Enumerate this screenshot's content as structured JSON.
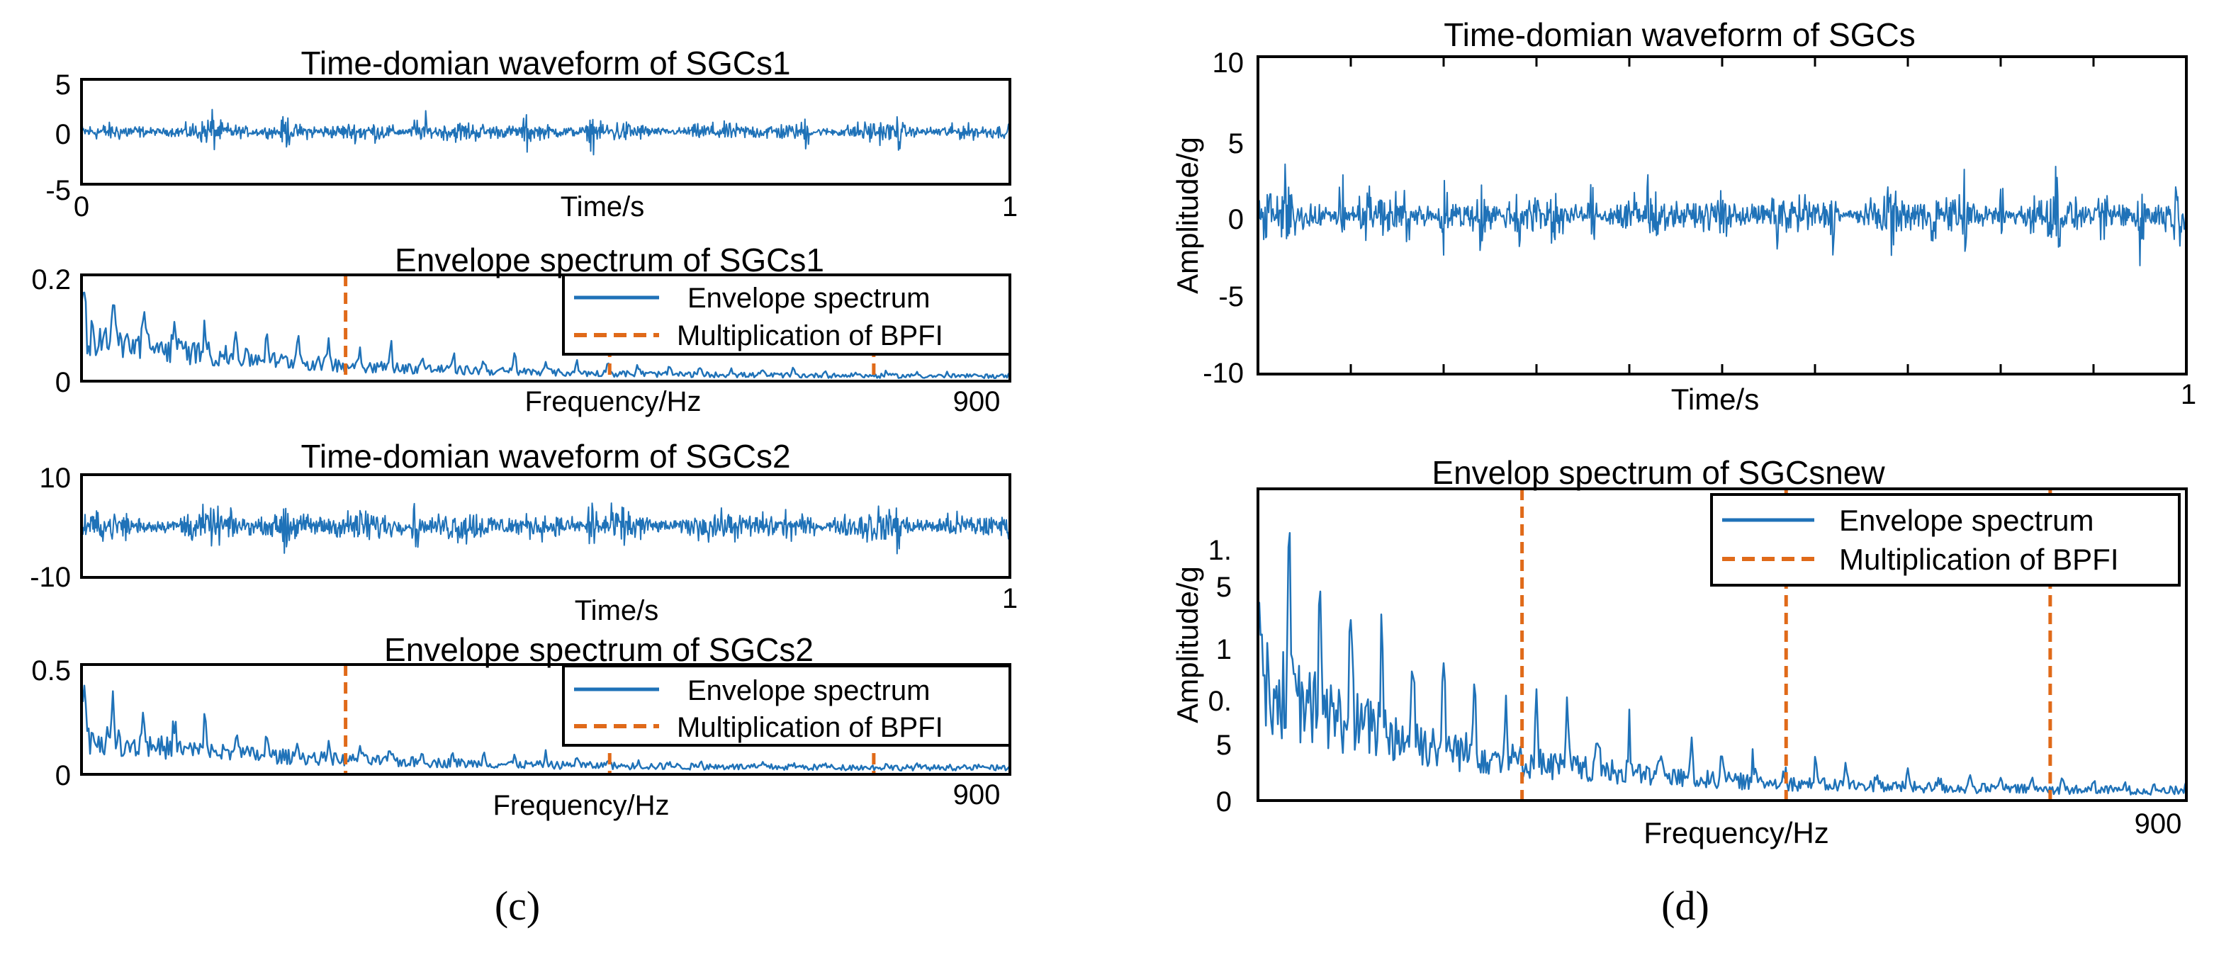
{
  "colors": {
    "signal": "#1f72b8",
    "bpf": "#e06a19",
    "axis": "#000000",
    "background": "#ffffff"
  },
  "captions": {
    "left": "(c)",
    "right": "(d)"
  },
  "chart_data": [
    {
      "type": "line",
      "title": "Time-domian waveform of SGCs1",
      "xlabel": "Time/s",
      "ylabel": "",
      "xlim": [
        0,
        1
      ],
      "ylim": [
        -5,
        5
      ],
      "x_ticks": [
        "0",
        "1"
      ],
      "y_ticks": [
        "5",
        "0",
        "-5"
      ],
      "series": [
        {
          "values_note": "",
          "amplitude": 2.2,
          "spikes": [
            0.14,
            0.22,
            0.36,
            0.37,
            0.48,
            0.55,
            0.78,
            0.88
          ]
        }
      ],
      "grid": false
    },
    {
      "type": "line",
      "title": "Envelope spectrum of SGCs1",
      "xlabel": "Frequency/Hz",
      "ylabel": "",
      "xlim": [
        0,
        900
      ],
      "ylim": [
        0,
        0.2
      ],
      "x_ticks": [
        "900"
      ],
      "y_ticks": [
        "0.2",
        "0"
      ],
      "series": [
        {
          "name": "Envelope spectrum",
          "peak": 0.18,
          "decay_start": 0.11,
          "floor": 0.012
        },
        {
          "name": "Multiplication of BPFI",
          "x": [
            256,
            512,
            768
          ]
        }
      ],
      "legend": "top-right",
      "grid": false
    },
    {
      "type": "line",
      "title": "Time-domian waveform of SGCs2",
      "xlabel": "Time/s",
      "ylabel": "",
      "xlim": [
        0,
        1
      ],
      "ylim": [
        -10,
        10
      ],
      "x_ticks": [
        "1"
      ],
      "y_ticks": [
        "10",
        "-10"
      ],
      "series": [
        {
          "amplitude": 7.5,
          "spikes": [
            0.22,
            0.36,
            0.55,
            0.88
          ]
        }
      ],
      "grid": false
    },
    {
      "type": "line",
      "title": "Envelope spectrum of SGCs2",
      "xlabel": "Frequency/Hz",
      "ylabel": "",
      "xlim": [
        0,
        900
      ],
      "ylim": [
        0,
        0.5
      ],
      "x_ticks": [
        "900"
      ],
      "y_ticks": [
        "0.5",
        "0"
      ],
      "series": [
        {
          "name": "Envelope spectrum",
          "peak": 0.45,
          "decay_start": 0.2,
          "floor": 0.04
        },
        {
          "name": "Multiplication of BPFI",
          "x": [
            256,
            512,
            768
          ]
        }
      ],
      "legend": "top-right",
      "grid": false
    },
    {
      "type": "line",
      "title": "Time-domian waveform of SGCs",
      "xlabel": "Time/s",
      "ylabel": "Amplitude/g",
      "xlim": [
        0,
        1
      ],
      "ylim": [
        -10,
        10
      ],
      "x_ticks": [
        "1"
      ],
      "y_ticks": [
        "10",
        "5",
        "0",
        "-5",
        "-10"
      ],
      "series": [
        {
          "amplitude": 3.0,
          "spikes": [
            0.01,
            0.03,
            0.09,
            0.12,
            0.16,
            0.2,
            0.24,
            0.28,
            0.32,
            0.36,
            0.42,
            0.5,
            0.56,
            0.62,
            0.68,
            0.73,
            0.76,
            0.8,
            0.86,
            0.91,
            0.95,
            0.99
          ]
        }
      ],
      "grid": false
    },
    {
      "type": "line",
      "title": "Envelop spectrum of SGCsnew",
      "xlabel": "Frequency/Hz",
      "ylabel": "Amplitude/g",
      "xlim": [
        0,
        900
      ],
      "ylim": [
        0,
        2
      ],
      "x_ticks": [
        "900"
      ],
      "y_ticks": [
        "1.\n5",
        "1",
        "0.\n5",
        "0"
      ],
      "series": [
        {
          "name": "Envelope spectrum",
          "peak": 1.5,
          "decay_start": 1.0,
          "floor": 0.08
        },
        {
          "name": "Multiplication of BPFI",
          "x": [
            256,
            512,
            768
          ]
        }
      ],
      "legend": "top-right",
      "grid": false
    }
  ]
}
